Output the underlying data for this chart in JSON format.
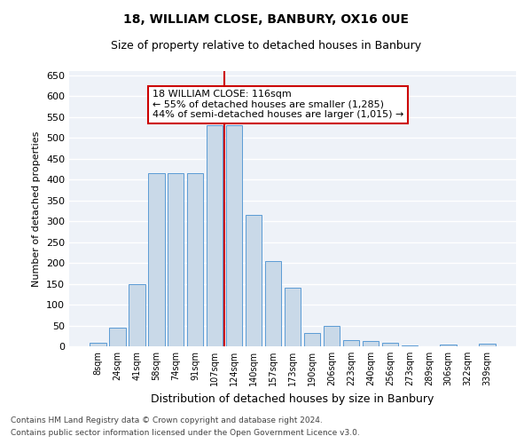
{
  "title1": "18, WILLIAM CLOSE, BANBURY, OX16 0UE",
  "title2": "Size of property relative to detached houses in Banbury",
  "xlabel": "Distribution of detached houses by size in Banbury",
  "ylabel": "Number of detached properties",
  "bar_labels": [
    "8sqm",
    "24sqm",
    "41sqm",
    "58sqm",
    "74sqm",
    "91sqm",
    "107sqm",
    "124sqm",
    "140sqm",
    "157sqm",
    "173sqm",
    "190sqm",
    "206sqm",
    "223sqm",
    "240sqm",
    "256sqm",
    "273sqm",
    "289sqm",
    "306sqm",
    "322sqm",
    "339sqm"
  ],
  "bar_values": [
    8,
    45,
    150,
    415,
    415,
    415,
    530,
    530,
    315,
    205,
    140,
    33,
    48,
    14,
    12,
    8,
    3,
    0,
    5,
    0,
    6
  ],
  "bar_color": "#c9d9e8",
  "bar_edge_color": "#5b9bd5",
  "vline_x": 6.5,
  "annotation_text": "18 WILLIAM CLOSE: 116sqm\n← 55% of detached houses are smaller (1,285)\n44% of semi-detached houses are larger (1,015) →",
  "annotation_box_color": "#ffffff",
  "annotation_box_edge": "#cc0000",
  "vline_color": "#cc0000",
  "background_color": "#eef2f8",
  "grid_color": "#ffffff",
  "footer1": "Contains HM Land Registry data © Crown copyright and database right 2024.",
  "footer2": "Contains public sector information licensed under the Open Government Licence v3.0.",
  "ylim": [
    0,
    660
  ],
  "yticks": [
    0,
    50,
    100,
    150,
    200,
    250,
    300,
    350,
    400,
    450,
    500,
    550,
    600,
    650
  ]
}
